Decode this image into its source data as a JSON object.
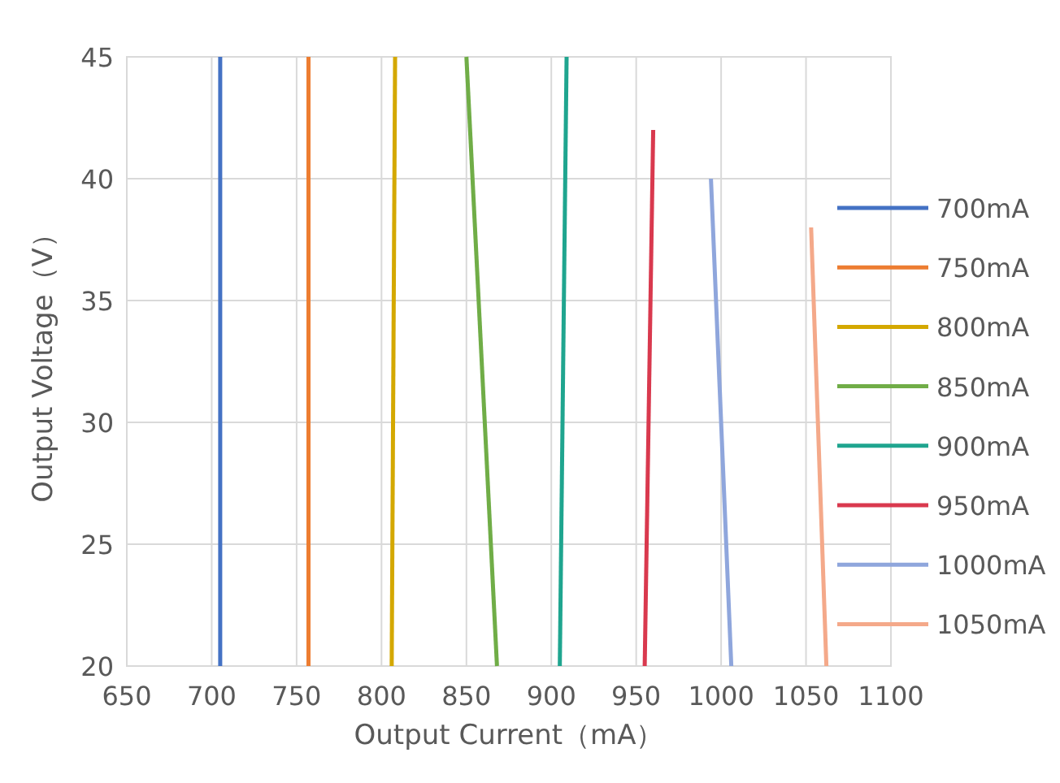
{
  "chart_data": {
    "type": "line",
    "xlabel": "Output Current（mA）",
    "ylabel": "Output Voltage（V）",
    "xlim": [
      650,
      1100
    ],
    "xticks": [
      650,
      700,
      750,
      800,
      850,
      900,
      950,
      1000,
      1050,
      1100
    ],
    "ylim": [
      20,
      45
    ],
    "yticks": [
      20,
      25,
      30,
      35,
      40,
      45
    ],
    "grid": true,
    "legend": "right",
    "marker": "none",
    "series": [
      {
        "name": "700mA",
        "color": "#4472c4",
        "x": [
          705,
          705
        ],
        "values": [
          20,
          45
        ]
      },
      {
        "name": "750mA",
        "color": "#ed7d31",
        "x": [
          757,
          757
        ],
        "values": [
          20,
          45
        ]
      },
      {
        "name": "800mA",
        "color": "#d4a800",
        "x": [
          806,
          808
        ],
        "values": [
          20,
          45
        ]
      },
      {
        "name": "850mA",
        "color": "#70ad47",
        "x": [
          868,
          850
        ],
        "values": [
          20,
          45
        ]
      },
      {
        "name": "900mA",
        "color": "#1fa58f",
        "x": [
          905,
          909
        ],
        "values": [
          20,
          45
        ]
      },
      {
        "name": "950mA",
        "color": "#d9394e",
        "x": [
          955,
          960
        ],
        "values": [
          20,
          42
        ]
      },
      {
        "name": "1000mA",
        "color": "#8fa6dc",
        "x": [
          1006,
          994
        ],
        "values": [
          20,
          40
        ]
      },
      {
        "name": "1050mA",
        "color": "#f4a98a",
        "x": [
          1062,
          1053
        ],
        "values": [
          20,
          38
        ]
      }
    ]
  }
}
